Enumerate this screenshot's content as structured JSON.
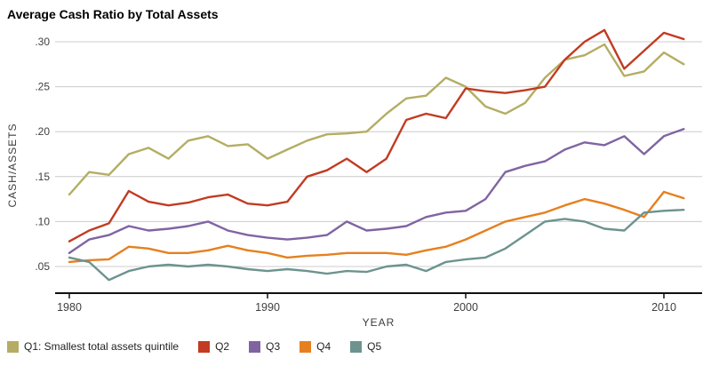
{
  "title": "Average Cash Ratio by Total Assets",
  "chart_data": {
    "type": "line",
    "title": "Average Cash Ratio by Total Assets",
    "xlabel": "YEAR",
    "ylabel": "CASH/ASSETS",
    "grid": true,
    "legend_position": "bottom",
    "xlim": [
      1979.3,
      2012
    ],
    "ylim": [
      0.02,
      0.315
    ],
    "x_ticks": [
      1980,
      1990,
      2000,
      2010
    ],
    "y_ticks": [
      0.05,
      0.1,
      0.15,
      0.2,
      0.25,
      0.3
    ],
    "y_tick_labels": [
      ".05",
      ".10",
      ".15",
      ".20",
      ".25",
      ".30"
    ],
    "colors": {
      "grid": "#cccccc",
      "axis": "#111111",
      "tick_text": "#404040"
    },
    "x": [
      1980,
      1981,
      1982,
      1983,
      1984,
      1985,
      1986,
      1987,
      1988,
      1989,
      1990,
      1991,
      1992,
      1993,
      1994,
      1995,
      1996,
      1997,
      1998,
      1999,
      2000,
      2001,
      2002,
      2003,
      2004,
      2005,
      2006,
      2007,
      2008,
      2009,
      2010,
      2011
    ],
    "series": [
      {
        "id": "q1",
        "name": "Q1: Smallest total assets quintile",
        "color": "#b4ad63",
        "values": [
          0.13,
          0.155,
          0.152,
          0.175,
          0.182,
          0.17,
          0.19,
          0.195,
          0.184,
          0.186,
          0.17,
          0.18,
          0.19,
          0.197,
          0.198,
          0.2,
          0.22,
          0.237,
          0.24,
          0.26,
          0.25,
          0.228,
          0.22,
          0.232,
          0.26,
          0.28,
          0.285,
          0.297,
          0.262,
          0.267,
          0.288,
          0.275
        ]
      },
      {
        "id": "q2",
        "name": "Q2",
        "color": "#c23b22",
        "values": [
          0.078,
          0.09,
          0.098,
          0.134,
          0.122,
          0.118,
          0.121,
          0.127,
          0.13,
          0.12,
          0.118,
          0.122,
          0.15,
          0.157,
          0.17,
          0.155,
          0.17,
          0.213,
          0.22,
          0.215,
          0.248,
          0.245,
          0.243,
          0.246,
          0.25,
          0.28,
          0.3,
          0.313,
          0.27,
          0.29,
          0.31,
          0.303
        ]
      },
      {
        "id": "q3",
        "name": "Q3",
        "color": "#8064a2",
        "values": [
          0.065,
          0.08,
          0.085,
          0.095,
          0.09,
          0.092,
          0.095,
          0.1,
          0.09,
          0.085,
          0.082,
          0.08,
          0.082,
          0.085,
          0.1,
          0.09,
          0.092,
          0.095,
          0.105,
          0.11,
          0.112,
          0.125,
          0.155,
          0.162,
          0.167,
          0.18,
          0.188,
          0.185,
          0.195,
          0.175,
          0.195,
          0.203
        ]
      },
      {
        "id": "q4",
        "name": "Q4",
        "color": "#e6801f",
        "values": [
          0.055,
          0.057,
          0.058,
          0.072,
          0.07,
          0.065,
          0.065,
          0.068,
          0.073,
          0.068,
          0.065,
          0.06,
          0.062,
          0.063,
          0.065,
          0.065,
          0.065,
          0.063,
          0.068,
          0.072,
          0.08,
          0.09,
          0.1,
          0.105,
          0.11,
          0.118,
          0.125,
          0.12,
          0.113,
          0.105,
          0.133,
          0.126
        ]
      },
      {
        "id": "q5",
        "name": "Q5",
        "color": "#6d938e",
        "values": [
          0.06,
          0.055,
          0.035,
          0.045,
          0.05,
          0.052,
          0.05,
          0.052,
          0.05,
          0.047,
          0.045,
          0.047,
          0.045,
          0.042,
          0.045,
          0.044,
          0.05,
          0.052,
          0.045,
          0.055,
          0.058,
          0.06,
          0.07,
          0.085,
          0.1,
          0.103,
          0.1,
          0.092,
          0.09,
          0.11,
          0.112,
          0.113
        ]
      }
    ]
  }
}
